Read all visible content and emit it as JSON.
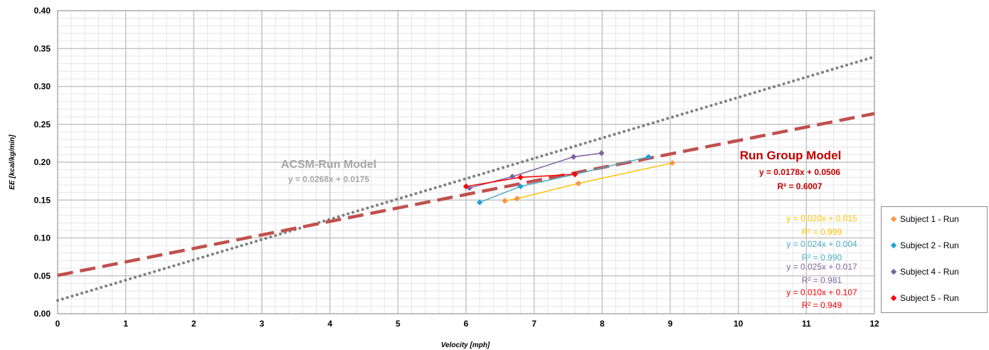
{
  "chart_data": {
    "type": "scatter",
    "xlabel": "Velocity [mph]",
    "ylabel": "EE [kcal/kg/min]",
    "xlim": [
      0,
      12
    ],
    "ylim": [
      0,
      0.4
    ],
    "x_ticks": [
      "0",
      "1",
      "2",
      "3",
      "4",
      "5",
      "6",
      "7",
      "8",
      "9",
      "10",
      "11",
      "12"
    ],
    "y_ticks": [
      "0.00",
      "0.05",
      "0.10",
      "0.15",
      "0.20",
      "0.25",
      "0.30",
      "0.35",
      "0.40"
    ],
    "grid": true,
    "legend_position": "right",
    "series": [
      {
        "name": "Subject 1 - Run",
        "color": "#f79646",
        "line_color": "#ffc000",
        "x": [
          6.57,
          6.75,
          7.65,
          9.03
        ],
        "y": [
          0.149,
          0.152,
          0.172,
          0.199
        ]
      },
      {
        "name": "Subject 2 - Run",
        "color": "#1fa3dc",
        "line_color": "#4bacc6",
        "x": [
          6.2,
          6.8,
          7.6,
          8.68
        ],
        "y": [
          0.147,
          0.168,
          0.184,
          0.207
        ]
      },
      {
        "name": "Subject 4 - Run",
        "color": "#8064a2",
        "line_color": "#8064a2",
        "x": [
          6.05,
          6.68,
          7.58,
          7.99
        ],
        "y": [
          0.166,
          0.181,
          0.207,
          0.212
        ]
      },
      {
        "name": "Subject 5 - Run",
        "color": "#ff0000",
        "line_color": "#ff0000",
        "x": [
          6.0,
          6.8,
          7.6
        ],
        "y": [
          0.168,
          0.18,
          0.184
        ]
      }
    ],
    "model_lines": [
      {
        "slope": 0.0268,
        "intercept": 0.0175,
        "color": "#808080",
        "style": "dotted"
      },
      {
        "slope": 0.0178,
        "intercept": 0.0506,
        "color": "#c0504d",
        "style": "dashed"
      }
    ],
    "annotations": {
      "acsm_title": "ACSM-Run Model",
      "acsm_equation": "y = 0.0268x + 0.0175",
      "group_title": "Run Group Model",
      "group_equation": "y = 0.0178x + 0.0506",
      "group_r2": "R² = 0.6007",
      "subject_fits": [
        {
          "equation": "y = 0.020x + 0.015",
          "r2": "R² = 0.999",
          "color": "#ffc000"
        },
        {
          "equation": "y = 0.024x + 0.004",
          "r2": "R² = 0.990",
          "color": "#4bacc6"
        },
        {
          "equation": "y = 0.025x + 0.017",
          "r2": "R² = 0.981",
          "color": "#8064a2"
        },
        {
          "equation": "y = 0.010x + 0.107",
          "r2": "R² = 0.949",
          "color": "#ff0000"
        }
      ]
    }
  },
  "legend": {
    "items": [
      "Subject 1 - Run",
      "Subject 2 - Run",
      "Subject 4 - Run",
      "Subject 5 - Run"
    ],
    "colors": [
      "#f79646",
      "#1fa3dc",
      "#8064a2",
      "#ff0000"
    ]
  }
}
